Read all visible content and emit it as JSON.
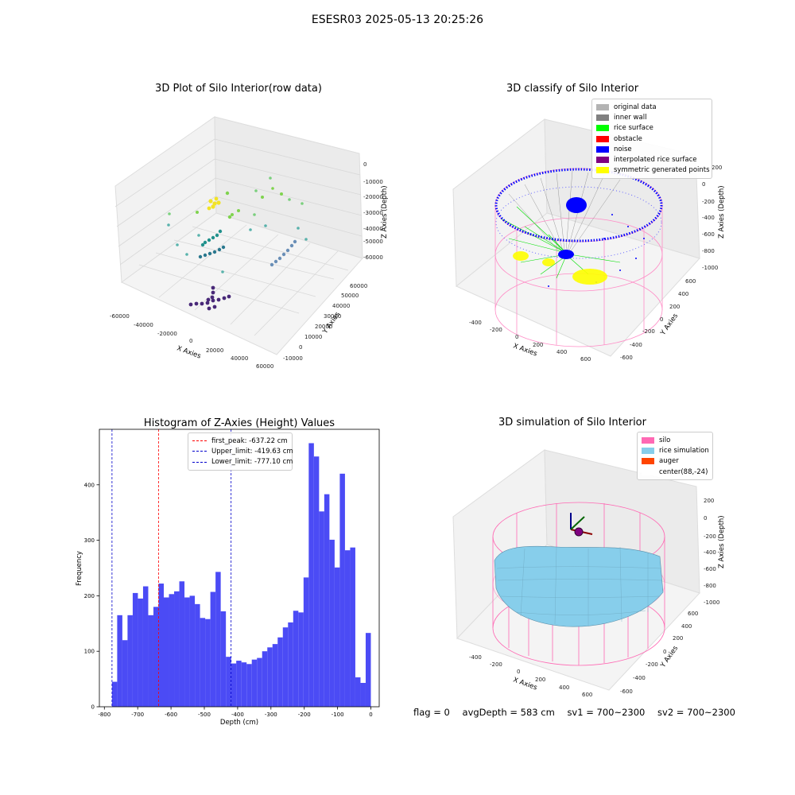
{
  "suptitle": "ESESR03 2025-05-13 20:25:26",
  "colors": {
    "silo": "#ff69b4",
    "rice_sim": "#87ceeb",
    "auger": "#ff4500",
    "hist": "#4b4bf5",
    "original": "#b3b3b3",
    "inner_wall": "#808080",
    "rice_surface": "#00ff00",
    "obstacle": "#ff0000",
    "noise": "#0000ff",
    "interp": "#800080",
    "symmetric": "#ffff00"
  },
  "panel1": {
    "title": "3D Plot of Silo Interior(row data)",
    "xlabel": "X Axies",
    "ylabel": "Y Axies",
    "zlabel": "Z Axies (Depth)",
    "xticks": [
      "-60000",
      "-40000",
      "-20000",
      "0",
      "20000",
      "40000",
      "60000"
    ],
    "yticks": [
      "-10000",
      "0",
      "10000",
      "20000",
      "30000",
      "40000",
      "50000",
      "60000"
    ],
    "zticks": [
      "0",
      "-10000",
      "-20000",
      "-30000",
      "-40000",
      "-50000",
      "-60000"
    ]
  },
  "panel2": {
    "title": "3D classify of Silo Interior",
    "xlabel": "X Axies",
    "ylabel": "Y Axies",
    "zlabel": "Z Axies (Depth)",
    "xticks": [
      "-400",
      "-200",
      "0",
      "200",
      "400",
      "600"
    ],
    "yticks": [
      "-600",
      "-400",
      "-200",
      "0",
      "200",
      "400",
      "600"
    ],
    "zticks": [
      "0",
      "-200",
      "-400",
      "-600",
      "-800",
      "-1000"
    ],
    "zticks_top": "200",
    "legend": [
      {
        "label": "original data",
        "color": "#b3b3b3"
      },
      {
        "label": "inner wall",
        "color": "#808080"
      },
      {
        "label": "rice surface",
        "color": "#00ff00"
      },
      {
        "label": "obstacle",
        "color": "#ff0000"
      },
      {
        "label": "noise",
        "color": "#0000ff"
      },
      {
        "label": "interpolated rice surface",
        "color": "#800080"
      },
      {
        "label": "symmetric generated points",
        "color": "#ffff00"
      }
    ]
  },
  "panel4": {
    "title": "3D simulation of Silo Interior",
    "xlabel": "X Axies",
    "ylabel": "Y Axies",
    "zlabel": "Z Axies (Depth)",
    "xticks": [
      "-400",
      "-200",
      "0",
      "200",
      "400",
      "600"
    ],
    "yticks": [
      "-600",
      "-400",
      "-200",
      "0",
      "200",
      "400",
      "600"
    ],
    "zticks": [
      "200",
      "0",
      "-200",
      "-400",
      "-600",
      "-800",
      "-1000"
    ],
    "legend": [
      {
        "label": "silo",
        "color": "#ff69b4"
      },
      {
        "label": "rice simulation",
        "color": "#87ceeb"
      },
      {
        "label": "auger",
        "color": "#ff4500"
      },
      {
        "label": "center(88,-24)",
        "color": "#ffffff"
      }
    ]
  },
  "footer": {
    "flag": "flag = 0",
    "avg": "avgDepth = 583 cm",
    "sv1": "sv1 = 700~2300",
    "sv2": "sv2 = 700~2300"
  },
  "chart_data": [
    {
      "type": "bar",
      "title": "Histogram of Z-Axies (Height) Values",
      "xlabel": "Depth (cm)",
      "ylabel": "Frequency",
      "xlim": [
        -815,
        25
      ],
      "ylim": [
        0,
        500
      ],
      "xticks": [
        -800,
        -700,
        -600,
        -500,
        -400,
        -300,
        -200,
        -100,
        0
      ],
      "yticks": [
        0,
        100,
        200,
        300,
        400
      ],
      "bin_start": -777.1,
      "bin_width": 15.54,
      "values": [
        45,
        165,
        120,
        165,
        205,
        195,
        217,
        165,
        180,
        222,
        197,
        203,
        208,
        226,
        197,
        200,
        185,
        160,
        158,
        207,
        243,
        172,
        90,
        78,
        83,
        80,
        77,
        85,
        88,
        100,
        107,
        113,
        125,
        143,
        152,
        173,
        170,
        233,
        475,
        451,
        352,
        383,
        301,
        251,
        420,
        282,
        287,
        53,
        43,
        133
      ],
      "lines": [
        {
          "label": "first_peak: -637.22 cm",
          "x": -637.22,
          "color": "#ff0000"
        },
        {
          "label": "Upper_limit: -419.63 cm",
          "x": -419.63,
          "color": "#0000cc"
        },
        {
          "label": "Lower_limit: -777.10 cm",
          "x": -777.1,
          "color": "#0000cc"
        }
      ]
    }
  ]
}
